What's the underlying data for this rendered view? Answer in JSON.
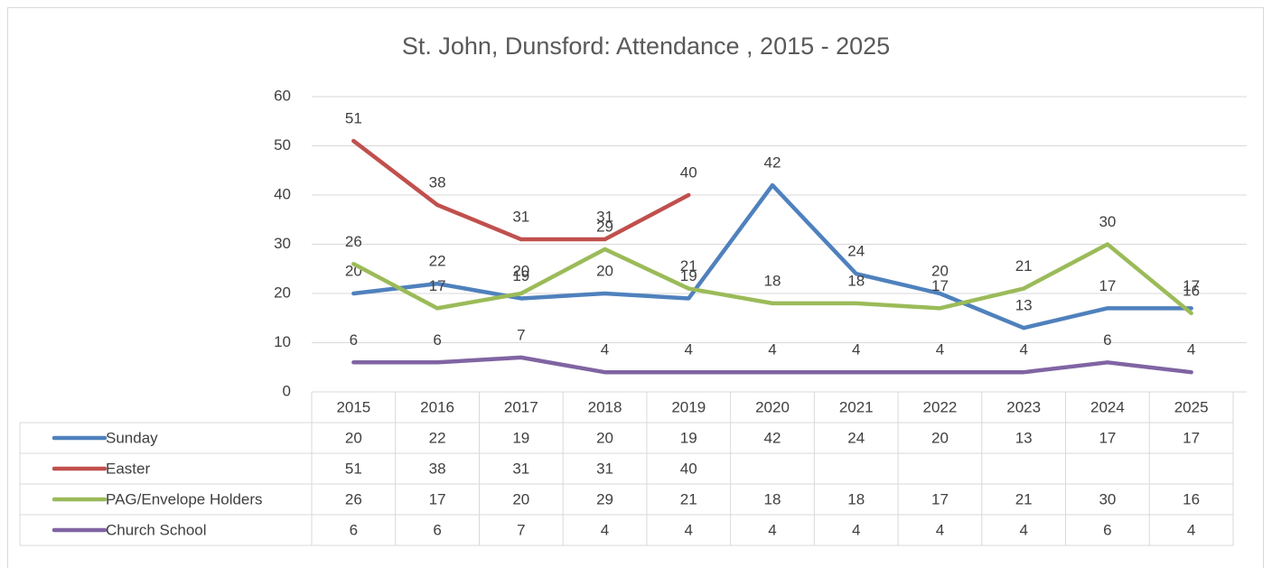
{
  "chart_data": {
    "type": "line",
    "title": "St. John, Dunsford: Attendance , 2015 - 2025",
    "categories": [
      "2015",
      "2016",
      "2017",
      "2018",
      "2019",
      "2020",
      "2021",
      "2022",
      "2023",
      "2024",
      "2025"
    ],
    "series": [
      {
        "name": "Sunday",
        "color": "#4f81bd",
        "values": [
          20,
          22,
          19,
          20,
          19,
          42,
          24,
          20,
          13,
          17,
          17
        ]
      },
      {
        "name": "Easter",
        "color": "#c0504d",
        "values": [
          51,
          38,
          31,
          31,
          40,
          null,
          null,
          null,
          null,
          null,
          null
        ]
      },
      {
        "name": "PAG/Envelope Holders",
        "color": "#9bbb59",
        "values": [
          26,
          17,
          20,
          29,
          21,
          18,
          18,
          17,
          21,
          30,
          16
        ]
      },
      {
        "name": "Church School",
        "color": "#8064a2",
        "values": [
          6,
          6,
          7,
          4,
          4,
          4,
          4,
          4,
          4,
          6,
          4
        ]
      }
    ],
    "ylim": [
      0,
      60
    ],
    "yticks": [
      0,
      10,
      20,
      30,
      40,
      50,
      60
    ],
    "grid": true,
    "data_labels": true,
    "data_table": true
  }
}
